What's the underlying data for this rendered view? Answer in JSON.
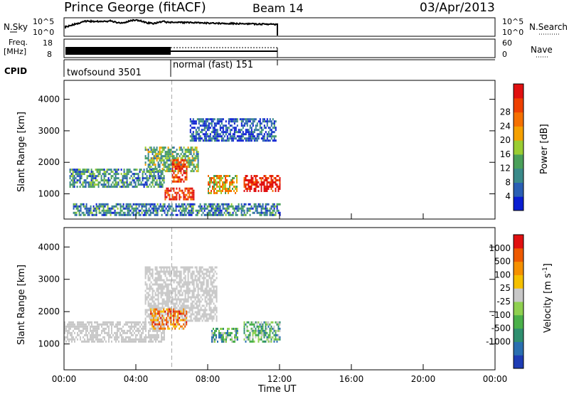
{
  "header": {
    "station": "Prince George (fitACF)",
    "beam": "Beam 14",
    "date": "03/Apr/2013"
  },
  "strips": {
    "nsky_label": "N.Sky",
    "nsky_ticks": [
      "10^5",
      "10^0"
    ],
    "nsearch_label": "N.Search",
    "freq_label_1": "Freq.",
    "freq_label_2": "[MHz]",
    "freq_ticks": [
      "18",
      "8"
    ],
    "nave_label": "Nave",
    "nave_ticks": [
      "60",
      "0"
    ],
    "cpid_label": "CPID",
    "cpid_1": "twofsound 3501",
    "cpid_2": "normal (fast) 151"
  },
  "chart_data": [
    {
      "type": "heatmap",
      "name": "power",
      "ylabel": "Slant Range [km]",
      "xlabel": "",
      "xlim": [
        0,
        24
      ],
      "ylim": [
        200,
        4600
      ],
      "y_ticks": [
        1000,
        2000,
        3000,
        4000
      ],
      "x_ticks": [
        "00:00",
        "04:00",
        "08:00",
        "12:00",
        "16:00",
        "20:00",
        "00:00"
      ],
      "colorbar": {
        "label": "Power [dB]",
        "ticks": [
          "4",
          "8",
          "12",
          "16",
          "20",
          "24",
          "28"
        ],
        "colors": [
          "#0a1ed2",
          "#2a5fb4",
          "#3a8a8a",
          "#4aa05a",
          "#9acd32",
          "#f5a000",
          "#f57000",
          "#ee4000",
          "#e01010"
        ]
      },
      "regions": [
        {
          "desc": "near band",
          "t": [
            0.3,
            5.6
          ],
          "r": [
            1250,
            1800
          ],
          "level": 0.3
        },
        {
          "desc": "rising",
          "t": [
            4.5,
            7.5
          ],
          "r": [
            1700,
            2500
          ],
          "level": 0.4
        },
        {
          "desc": "upper arc",
          "t": [
            7.0,
            11.8
          ],
          "r": [
            2700,
            3400
          ],
          "level": 0.15
        },
        {
          "desc": "strong 1",
          "t": [
            5.6,
            7.2
          ],
          "r": [
            800,
            1200
          ],
          "level": 0.9
        },
        {
          "desc": "strong 2",
          "t": [
            6.0,
            6.8
          ],
          "r": [
            1400,
            2100
          ],
          "level": 0.85
        },
        {
          "desc": "strong 3",
          "t": [
            10.0,
            12.0
          ],
          "r": [
            1100,
            1600
          ],
          "level": 0.95
        },
        {
          "desc": "mid",
          "t": [
            8.0,
            9.6
          ],
          "r": [
            1050,
            1600
          ],
          "level": 0.6
        },
        {
          "desc": "ground 500",
          "t": [
            0.5,
            12.0
          ],
          "r": [
            300,
            700
          ],
          "level": 0.25
        }
      ]
    },
    {
      "type": "heatmap",
      "name": "velocity",
      "ylabel": "Slant Range [km]",
      "xlabel": "Time UT",
      "xlim": [
        0,
        24
      ],
      "ylim": [
        200,
        4600
      ],
      "y_ticks": [
        1000,
        2000,
        3000,
        4000
      ],
      "x_ticks": [
        "00:00",
        "04:00",
        "08:00",
        "12:00",
        "16:00",
        "20:00",
        "00:00"
      ],
      "colorbar": {
        "label": "Velocity [m s^-1]",
        "ticks": [
          "1000",
          "500",
          "100",
          "25",
          "-25",
          "-100",
          "-500",
          "-1000"
        ],
        "colors": [
          "#1e3cb4",
          "#2a6fb0",
          "#2f8f6f",
          "#4ab04a",
          "#8fd050",
          "#c8c8c8",
          "#f5c000",
          "#f59000",
          "#ee5a00",
          "#e01010"
        ]
      },
      "regions": [
        {
          "desc": "grey band",
          "t": [
            0.0,
            5.6
          ],
          "r": [
            1100,
            1700
          ],
          "level": 0.5
        },
        {
          "desc": "grey rising",
          "t": [
            4.5,
            8.5
          ],
          "r": [
            1700,
            3400
          ],
          "level": 0.5
        },
        {
          "desc": "orange cluster",
          "t": [
            4.8,
            6.8
          ],
          "r": [
            1500,
            2100
          ],
          "level": 0.75
        },
        {
          "desc": "green cluster",
          "t": [
            10.0,
            12.0
          ],
          "r": [
            1100,
            1700
          ],
          "level": 0.35
        },
        {
          "desc": "mixed",
          "t": [
            8.2,
            9.7
          ],
          "r": [
            1100,
            1500
          ],
          "level": 0.35
        }
      ]
    }
  ]
}
